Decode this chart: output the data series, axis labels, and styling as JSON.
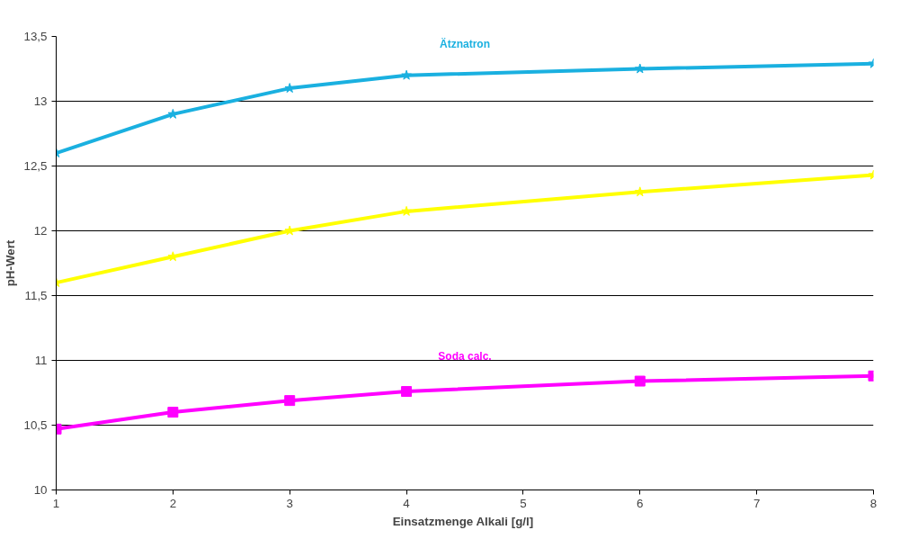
{
  "chart_data": {
    "type": "line",
    "xlabel": "Einsatzmenge Alkali  [g/l]",
    "ylabel": "pH-Wert",
    "x": [
      1,
      2,
      3,
      4,
      6,
      8
    ],
    "xlim": [
      1,
      8
    ],
    "xticks": [
      1,
      2,
      3,
      4,
      5,
      6,
      7,
      8
    ],
    "ylim": [
      10,
      13.5
    ],
    "yticks": [
      10,
      {
        "value": 10.5,
        "label": "10,5"
      },
      11,
      {
        "value": 11.5,
        "label": "11,5"
      },
      12,
      {
        "value": 12.5,
        "label": "12,5"
      },
      13,
      {
        "value": 13.5,
        "label": "13,5"
      }
    ],
    "grid": "y",
    "series": [
      {
        "name": "Ätznatron",
        "color": "#1ab0e0",
        "marker": "star",
        "values": [
          12.6,
          12.9,
          13.1,
          13.2,
          13.25,
          13.29
        ]
      },
      {
        "color": "#ffff00",
        "marker": "star",
        "values": [
          11.6,
          11.8,
          12.0,
          12.15,
          12.3,
          12.43
        ]
      },
      {
        "name": "Soda calc.",
        "color": "#ff00ff",
        "marker": "square",
        "values": [
          10.47,
          10.6,
          10.69,
          10.76,
          10.84,
          10.88
        ]
      }
    ]
  }
}
